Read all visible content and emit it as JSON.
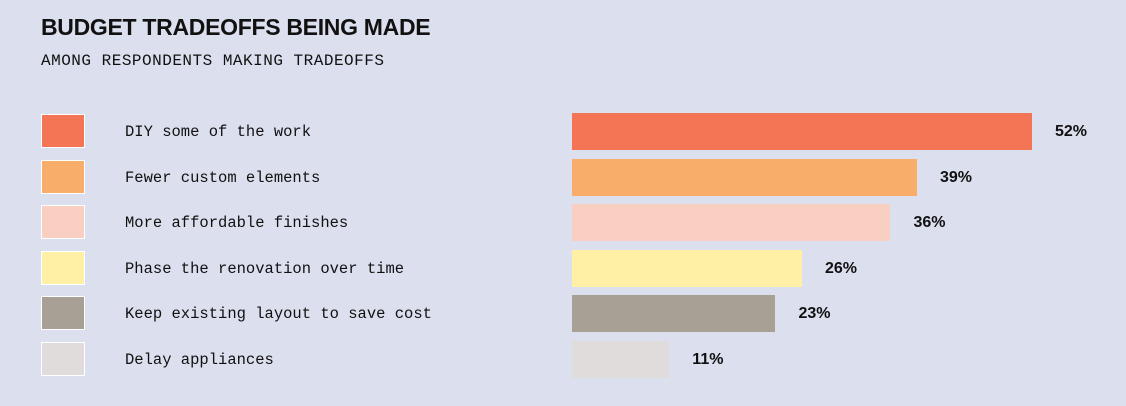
{
  "header": {
    "title": "BUDGET TRADEOFFS BEING MADE",
    "subtitle": "AMONG RESPONDENTS MAKING TRADEOFFS"
  },
  "chart_data": {
    "type": "bar",
    "orientation": "horizontal",
    "title": "BUDGET TRADEOFFS BEING MADE",
    "subtitle": "AMONG RESPONDENTS MAKING TRADEOFFS",
    "categories": [
      "DIY some of the work",
      "Fewer custom elements",
      "More affordable finishes",
      "Phase the renovation over time",
      "Keep existing layout to save cost",
      "Delay appliances"
    ],
    "values": [
      52,
      39,
      36,
      26,
      23,
      11
    ],
    "value_labels": [
      "52%",
      "39%",
      "36%",
      "26%",
      "23%",
      "11%"
    ],
    "colors": [
      "#f37556",
      "#f8ad6a",
      "#f9cfc1",
      "#fff0a6",
      "#a89f95",
      "#dfdcdb"
    ],
    "unit": "%",
    "xlim": [
      0,
      52
    ],
    "legend": "left",
    "grid": false
  }
}
